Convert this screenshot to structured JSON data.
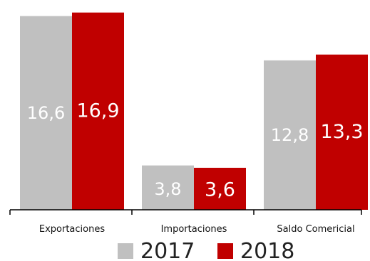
{
  "chart_data": {
    "type": "bar",
    "categories": [
      "Exportaciones",
      "Importaciones",
      "Saldo Comericial"
    ],
    "series": [
      {
        "name": "2017",
        "values": [
          16.6,
          3.8,
          12.8
        ],
        "labels": [
          "16,6",
          "3,8",
          "12,8"
        ],
        "color": "#c0c0c0"
      },
      {
        "name": "2018",
        "values": [
          16.9,
          3.6,
          13.3
        ],
        "labels": [
          "16,9",
          "3,6",
          "13,3"
        ],
        "color": "#c00000"
      }
    ],
    "ylim": [
      0,
      17
    ],
    "grid": false,
    "legend": "bottom",
    "title": "",
    "xlabel": "",
    "ylabel": ""
  }
}
